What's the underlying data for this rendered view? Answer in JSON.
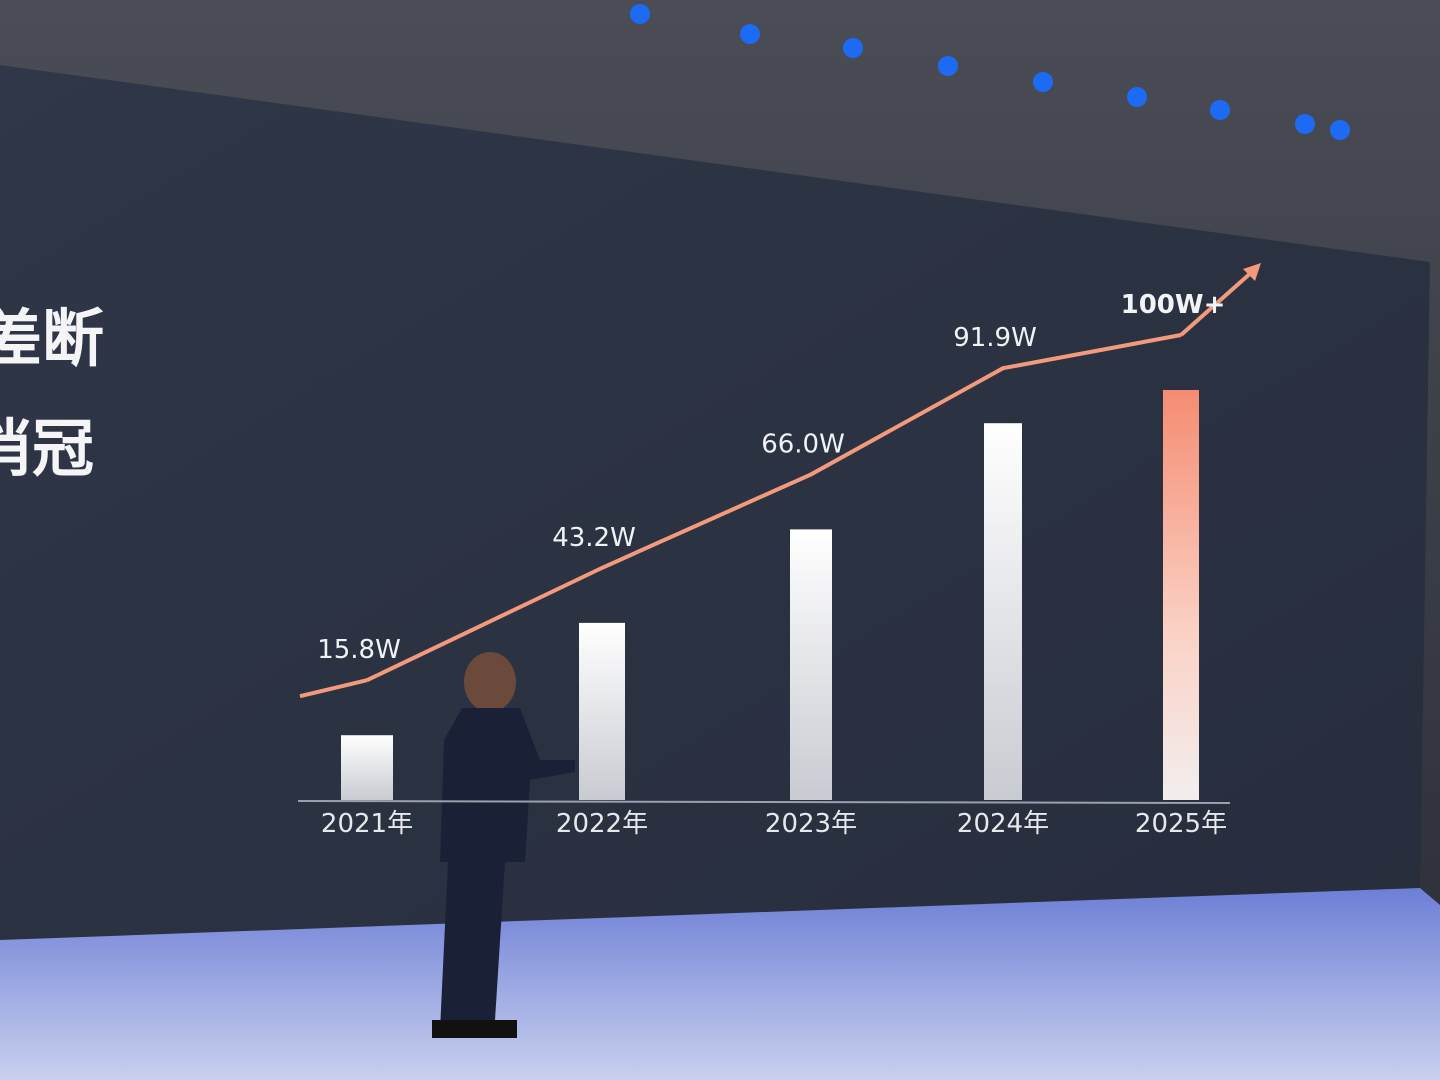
{
  "chart_data": {
    "type": "bar",
    "headline": [
      "差断",
      "消冠"
    ],
    "categories": [
      "2021年",
      "2022年",
      "2023年",
      "2024年",
      "2025年"
    ],
    "values": [
      15.8,
      43.2,
      66.0,
      91.9,
      100
    ],
    "value_labels": [
      "15.8W",
      "43.2W",
      "66.0W",
      "91.9W",
      "100W+"
    ],
    "color": "#f1f1f3",
    "highlight_color": "#f4917a",
    "line_color": "#f39a7c"
  }
}
